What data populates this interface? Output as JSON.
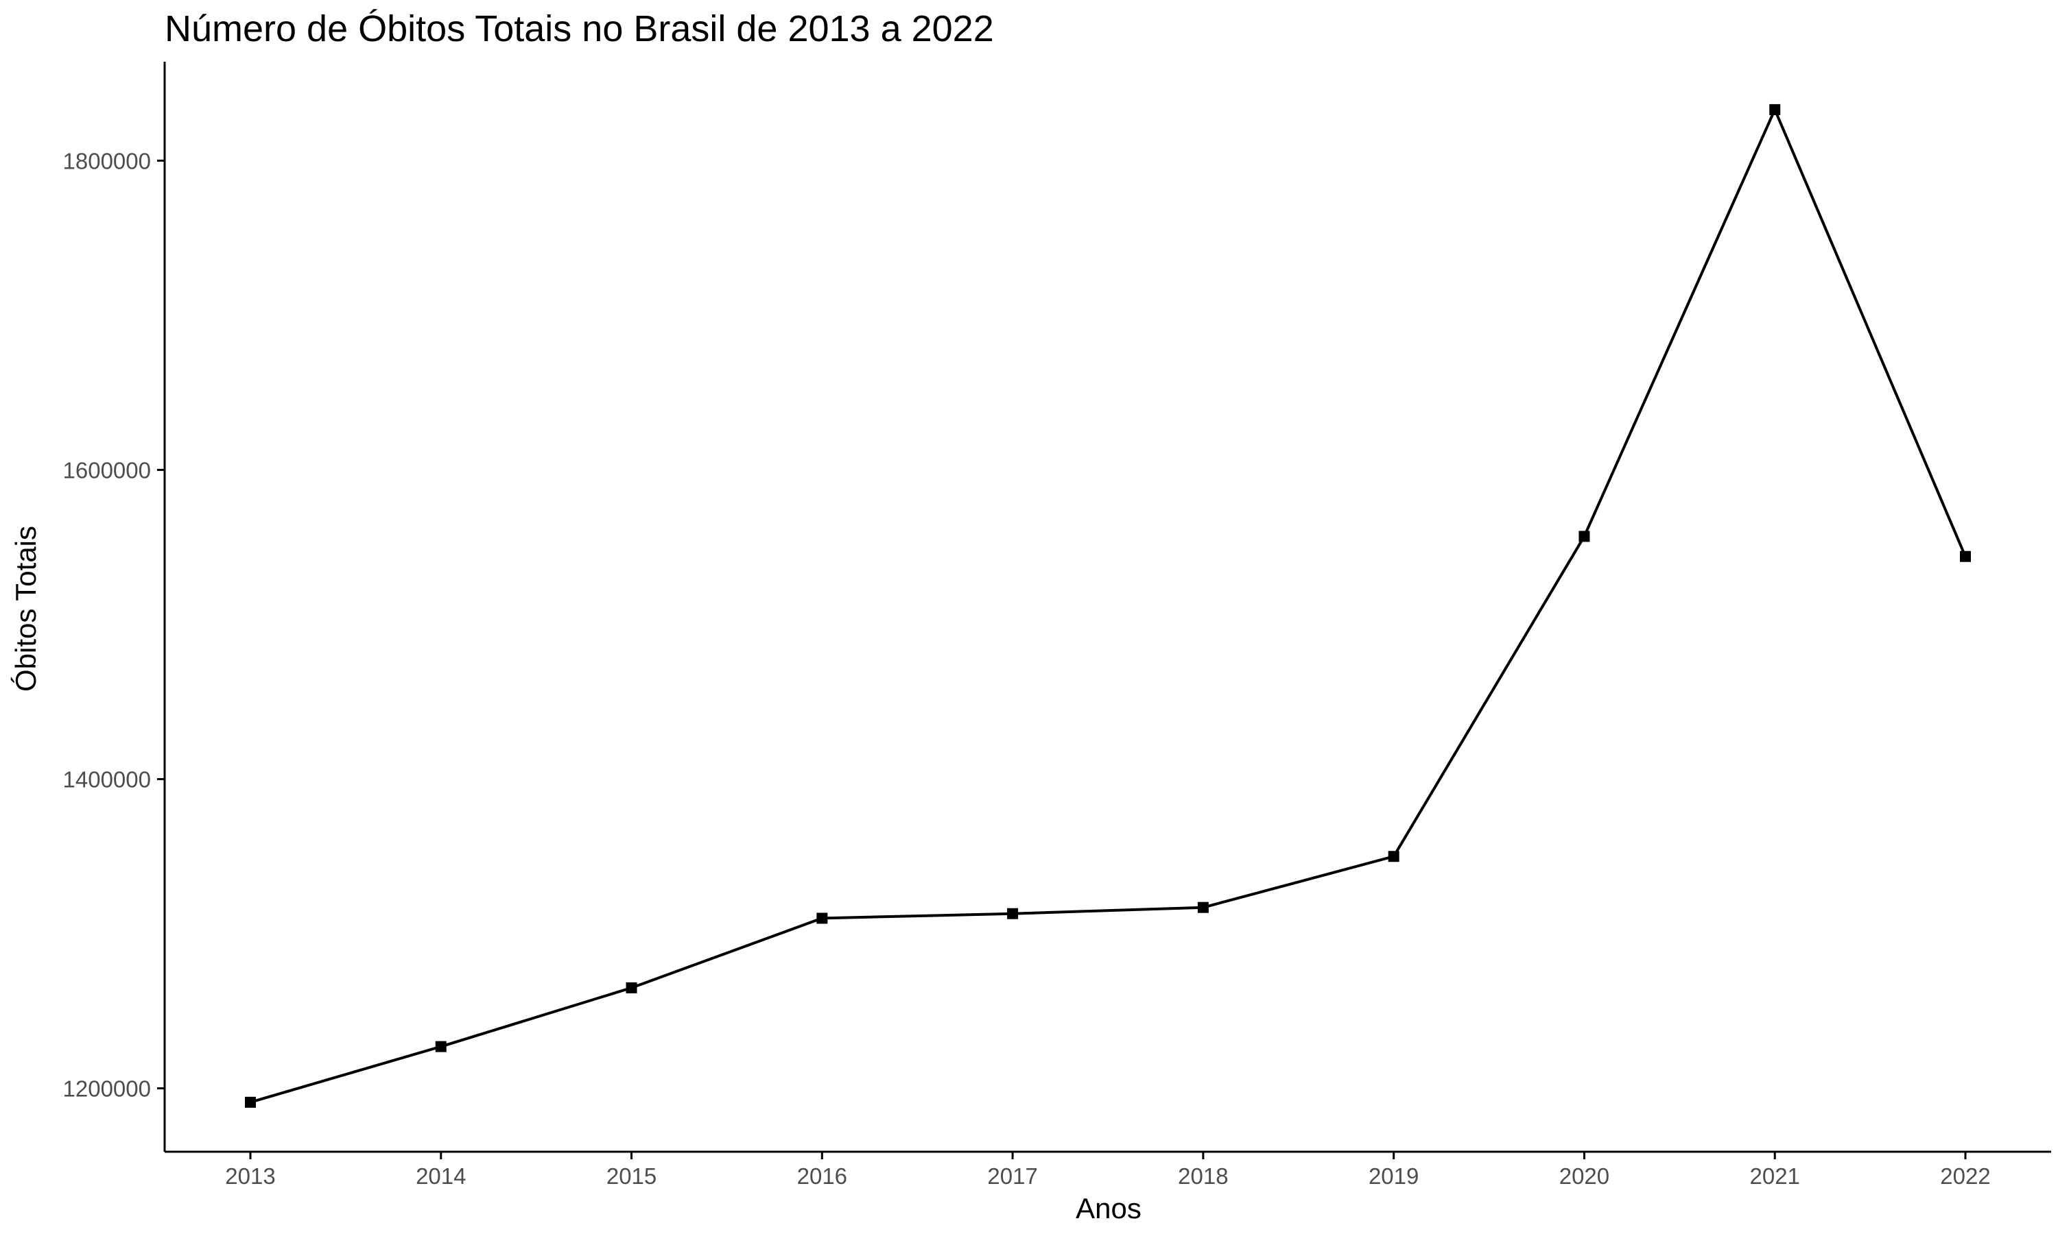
{
  "chart_data": {
    "type": "line",
    "title": "Número de Óbitos Totais no Brasil de 2013 a 2022",
    "xlabel": "Anos",
    "ylabel": "Óbitos Totais",
    "x": [
      2013,
      2014,
      2015,
      2016,
      2017,
      2018,
      2019,
      2020,
      2021,
      2022
    ],
    "x_tick_labels": [
      "2013",
      "2014",
      "2015",
      "2016",
      "2017",
      "2018",
      "2019",
      "2020",
      "2021",
      "2022"
    ],
    "series": [
      {
        "values": [
          1191000,
          1227000,
          1265000,
          1310000,
          1313000,
          1317000,
          1350000,
          1557000,
          1833000,
          1544000
        ]
      }
    ],
    "y_ticks": [
      1200000,
      1400000,
      1600000,
      1800000
    ],
    "y_tick_labels": [
      "1200000",
      "1400000",
      "1600000",
      "1800000"
    ],
    "xlim": [
      2012.55,
      2022.45
    ],
    "ylim": [
      1159000,
      1864000
    ],
    "grid": false,
    "legend": "none",
    "colors": {
      "line": "#000000",
      "point": "#000000",
      "tick_label": "#4d4d4d",
      "background": "#ffffff"
    }
  }
}
